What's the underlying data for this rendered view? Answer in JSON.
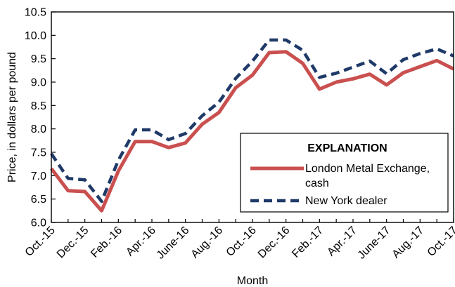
{
  "chart_data": {
    "type": "line",
    "title": "",
    "xlabel": "Month",
    "ylabel": "Price, in dollars per pound",
    "ylim": [
      6.0,
      10.5
    ],
    "yticks": [
      "6.0",
      "6.5",
      "7.0",
      "7.5",
      "8.0",
      "8.5",
      "9.0",
      "9.5",
      "10.0",
      "10.5"
    ],
    "categories": [
      "Oct.-15",
      "Nov.-15",
      "Dec.-15",
      "Jan.-16",
      "Feb.-16",
      "Mar.-16",
      "Apr.-16",
      "May-16",
      "June-16",
      "July-16",
      "Aug.-16",
      "Sept.-16",
      "Oct.-16",
      "Nov.-16",
      "Dec.-16",
      "Jan.-17",
      "Feb.-17",
      "Mar.-17",
      "Apr.-17",
      "May-17",
      "June-17",
      "July-17",
      "Aug.-17",
      "Sept.-17",
      "Oct.-17"
    ],
    "xtick_labels": [
      "Oct.-15",
      "Dec.-15",
      "Feb.-16",
      "Apr.-16",
      "June-16",
      "Aug.-16",
      "Oct.-16",
      "Dec.-16",
      "Feb.-17",
      "Apr.-17",
      "June-17",
      "Aug.-17",
      "Oct.-17"
    ],
    "grid": false,
    "legend": {
      "title": "EXPLANATION",
      "placement": "lower-right"
    },
    "series": [
      {
        "name": "London Metal Exchange, cash",
        "name_lines": [
          "London Metal Exchange,",
          "cash"
        ],
        "color": "#c9504f",
        "style": "solid",
        "values": [
          7.15,
          6.68,
          6.66,
          6.25,
          7.1,
          7.73,
          7.73,
          7.6,
          7.7,
          8.1,
          8.35,
          8.88,
          9.15,
          9.63,
          9.65,
          9.4,
          8.85,
          9.0,
          9.07,
          9.17,
          8.94,
          9.2,
          9.33,
          9.46,
          9.28
        ]
      },
      {
        "name": "New York dealer",
        "name_lines": [
          "New York dealer"
        ],
        "color": "#1f3a68",
        "style": "dashed",
        "values": [
          7.47,
          6.94,
          6.91,
          6.45,
          7.33,
          7.98,
          7.98,
          7.77,
          7.9,
          8.28,
          8.57,
          9.08,
          9.45,
          9.9,
          9.9,
          9.68,
          9.1,
          9.19,
          9.32,
          9.45,
          9.18,
          9.48,
          9.61,
          9.71,
          9.56
        ]
      }
    ]
  }
}
